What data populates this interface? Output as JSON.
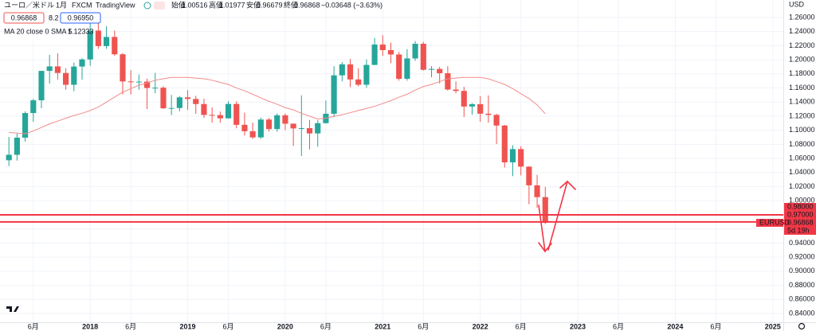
{
  "header": {
    "symbol": "ユーロ／米ドル",
    "interval": "1月",
    "broker": "FXCM",
    "source": "TradingView",
    "open_label": "始値",
    "high_label": "高値",
    "low_label": "安値",
    "close_label": "終値",
    "change": "−0.03648 (−3.63%)",
    "spread": "8.2",
    "ask": "0.96950"
  },
  "chart_data": {
    "type": "candlestick",
    "currency": "USD",
    "symbol_tag": "EURUSD",
    "countdown": "5d 19h",
    "colors": {
      "up": "#26a69a",
      "down": "#ef5350"
    },
    "x": [
      "2017-03",
      "2017-04",
      "2017-05",
      "2017-06",
      "2017-07",
      "2017-08",
      "2017-09",
      "2017-10",
      "2017-11",
      "2017-12",
      "2018-01",
      "2018-02",
      "2018-03",
      "2018-04",
      "2018-05",
      "2018-06",
      "2018-07",
      "2018-08",
      "2018-09",
      "2018-10",
      "2018-11",
      "2018-12",
      "2019-01",
      "2019-02",
      "2019-03",
      "2019-04",
      "2019-05",
      "2019-06",
      "2019-07",
      "2019-08",
      "2019-09",
      "2019-10",
      "2019-11",
      "2019-12",
      "2020-01",
      "2020-02",
      "2020-03",
      "2020-04",
      "2020-05",
      "2020-06",
      "2020-07",
      "2020-08",
      "2020-09",
      "2020-10",
      "2020-11",
      "2020-12",
      "2021-01",
      "2021-02",
      "2021-03",
      "2021-04",
      "2021-05",
      "2021-06",
      "2021-07",
      "2021-08",
      "2021-09",
      "2021-10",
      "2021-11",
      "2021-12",
      "2022-01",
      "2022-02",
      "2022-03",
      "2022-04",
      "2022-05",
      "2022-06",
      "2022-07",
      "2022-08",
      "2022-09"
    ],
    "open": [
      1.0575,
      1.0652,
      1.0895,
      1.1244,
      1.1425,
      1.1842,
      1.1906,
      1.1813,
      1.1645,
      1.1904,
      1.2005,
      1.2414,
      1.2194,
      1.2324,
      1.2078,
      1.1693,
      1.1682,
      1.169,
      1.16,
      1.1604,
      1.1312,
      1.1316,
      1.1467,
      1.1444,
      1.1372,
      1.1218,
      1.1215,
      1.1169,
      1.1373,
      1.1077,
      1.0986,
      1.0899,
      1.1152,
      1.1017,
      1.1213,
      1.1093,
      1.1026,
      1.103,
      1.0955,
      1.1101,
      1.1234,
      1.1779,
      1.1935,
      1.1721,
      1.1646,
      1.1927,
      1.2216,
      1.2137,
      1.2075,
      1.173,
      1.2019,
      1.2227,
      1.1858,
      1.187,
      1.1809,
      1.1578,
      1.1558,
      1.1337,
      1.137,
      1.1235,
      1.1218,
      1.1067,
      1.0545,
      1.0733,
      1.0484,
      1.0219,
      1.00516
    ],
    "high": [
      1.0906,
      1.0951,
      1.1268,
      1.1446,
      1.1846,
      1.207,
      1.2092,
      1.188,
      1.1961,
      1.2023,
      1.2537,
      1.2556,
      1.2476,
      1.2414,
      1.2096,
      1.1852,
      1.1791,
      1.1733,
      1.1815,
      1.1625,
      1.15,
      1.1486,
      1.157,
      1.1489,
      1.1448,
      1.1324,
      1.1265,
      1.1412,
      1.1412,
      1.125,
      1.1109,
      1.1179,
      1.1175,
      1.1239,
      1.1239,
      1.1097,
      1.1495,
      1.1147,
      1.1146,
      1.1422,
      1.1909,
      1.1966,
      1.2011,
      1.188,
      1.2003,
      1.231,
      1.2349,
      1.2243,
      1.2113,
      1.215,
      1.2266,
      1.2254,
      1.1909,
      1.19,
      1.1909,
      1.1692,
      1.1616,
      1.1385,
      1.1483,
      1.1495,
      1.1233,
      1.1076,
      1.0787,
      1.0773,
      1.0487,
      1.0368,
      1.01977
    ],
    "low": [
      1.0493,
      1.057,
      1.0839,
      1.1119,
      1.1313,
      1.1662,
      1.1717,
      1.1574,
      1.1554,
      1.1717,
      1.1915,
      1.2154,
      1.2155,
      1.2055,
      1.151,
      1.1508,
      1.1575,
      1.1301,
      1.1526,
      1.1302,
      1.1216,
      1.1269,
      1.1289,
      1.1234,
      1.1176,
      1.111,
      1.1107,
      1.1168,
      1.1027,
      1.0926,
      1.0879,
      1.0879,
      1.0981,
      1.0981,
      1.1002,
      1.0778,
      1.0636,
      1.0727,
      1.0766,
      1.1094,
      1.1185,
      1.1695,
      1.1612,
      1.1622,
      1.1602,
      1.1925,
      1.2055,
      1.1953,
      1.1704,
      1.1704,
      1.1986,
      1.1847,
      1.1752,
      1.1664,
      1.1563,
      1.1524,
      1.1186,
      1.1222,
      1.1121,
      1.1106,
      1.0806,
      1.0471,
      1.0349,
      1.0359,
      0.9952,
      0.9901,
      0.96679
    ],
    "close": [
      1.0652,
      1.0895,
      1.1244,
      1.1425,
      1.1842,
      1.1906,
      1.1813,
      1.1645,
      1.1904,
      1.2005,
      1.2414,
      1.2194,
      1.2324,
      1.2078,
      1.1693,
      1.1682,
      1.169,
      1.16,
      1.1604,
      1.1312,
      1.1316,
      1.1467,
      1.1444,
      1.1372,
      1.1218,
      1.1215,
      1.1169,
      1.1373,
      1.1077,
      1.0986,
      1.0899,
      1.1152,
      1.1017,
      1.1213,
      1.1093,
      1.1026,
      1.103,
      1.0955,
      1.1101,
      1.1234,
      1.1779,
      1.1935,
      1.1721,
      1.1646,
      1.1927,
      1.2216,
      1.2137,
      1.2075,
      1.173,
      1.2019,
      1.2227,
      1.1858,
      1.187,
      1.1809,
      1.1578,
      1.1558,
      1.1337,
      1.137,
      1.1235,
      1.1218,
      1.1067,
      1.0545,
      1.0733,
      1.0484,
      1.0219,
      1.00516,
      0.96868
    ],
    "ma": {
      "name": "MA 20 close 0 SMA 5",
      "color": "#f28b8b",
      "values": [
        1.097,
        1.096,
        1.095,
        1.099,
        1.104,
        1.109,
        1.113,
        1.117,
        1.121,
        1.124,
        1.128,
        1.133,
        1.14,
        1.147,
        1.154,
        1.159,
        1.164,
        1.167,
        1.171,
        1.173,
        1.175,
        1.175,
        1.175,
        1.174,
        1.173,
        1.171,
        1.168,
        1.165,
        1.16,
        1.156,
        1.151,
        1.146,
        1.141,
        1.137,
        1.132,
        1.129,
        1.124,
        1.12,
        1.116,
        1.117,
        1.12,
        1.122,
        1.125,
        1.128,
        1.131,
        1.134,
        1.138,
        1.142,
        1.147,
        1.151,
        1.157,
        1.162,
        1.165,
        1.169,
        1.173,
        1.174,
        1.175,
        1.175,
        1.175,
        1.173,
        1.169,
        1.165,
        1.159,
        1.152,
        1.145,
        1.136,
        1.12333
      ]
    },
    "price_lines": [
      {
        "value": 0.98,
        "label": "0.98000"
      },
      {
        "value": 0.97,
        "label": "0.97000"
      }
    ],
    "line_color": "#f23645",
    "xlim": [
      "2017-02",
      "2025-02"
    ],
    "ylim": [
      0.8276,
      1.2848
    ],
    "xticks": [
      {
        "value": "2017-06",
        "label": "6月"
      },
      {
        "value": "2018-01",
        "label": "2018"
      },
      {
        "value": "2018-06",
        "label": "6月"
      },
      {
        "value": "2019-01",
        "label": "2019"
      },
      {
        "value": "2019-06",
        "label": "6月"
      },
      {
        "value": "2020-01",
        "label": "2020"
      },
      {
        "value": "2020-06",
        "label": "6月"
      },
      {
        "value": "2021-01",
        "label": "2021"
      },
      {
        "value": "2021-06",
        "label": "6月"
      },
      {
        "value": "2022-01",
        "label": "2022"
      },
      {
        "value": "2022-06",
        "label": "6月"
      },
      {
        "value": "2023-01",
        "label": "2023"
      },
      {
        "value": "2023-06",
        "label": "6月"
      },
      {
        "value": "2024-01",
        "label": "2024"
      },
      {
        "value": "2024-06",
        "label": "6月"
      },
      {
        "value": "2025-01",
        "label": "2025"
      }
    ],
    "yticks": [
      {
        "value": 0.84,
        "label": "0.84000"
      },
      {
        "value": 0.86,
        "label": "0.86000"
      },
      {
        "value": 0.88,
        "label": "0.88000"
      },
      {
        "value": 0.9,
        "label": "0.90000"
      },
      {
        "value": 0.92,
        "label": "0.92000"
      },
      {
        "value": 0.94,
        "label": "0.94000"
      },
      {
        "value": 0.96,
        "label": "0.96000"
      },
      {
        "value": 0.98,
        "label": "0.98000"
      },
      {
        "value": 1.0,
        "label": "1.00000"
      },
      {
        "value": 1.02,
        "label": "1.02000"
      },
      {
        "value": 1.04,
        "label": "1.04000"
      },
      {
        "value": 1.06,
        "label": "1.06000"
      },
      {
        "value": 1.08,
        "label": "1.08000"
      },
      {
        "value": 1.1,
        "label": "1.10000"
      },
      {
        "value": 1.12,
        "label": "1.12000"
      },
      {
        "value": 1.14,
        "label": "1.14000"
      },
      {
        "value": 1.16,
        "label": "1.16000"
      },
      {
        "value": 1.18,
        "label": "1.18000"
      },
      {
        "value": 1.2,
        "label": "1.20000"
      },
      {
        "value": 1.22,
        "label": "1.22000"
      },
      {
        "value": 1.24,
        "label": "1.24000"
      },
      {
        "value": 1.26,
        "label": "1.26000"
      }
    ],
    "grid": true
  }
}
